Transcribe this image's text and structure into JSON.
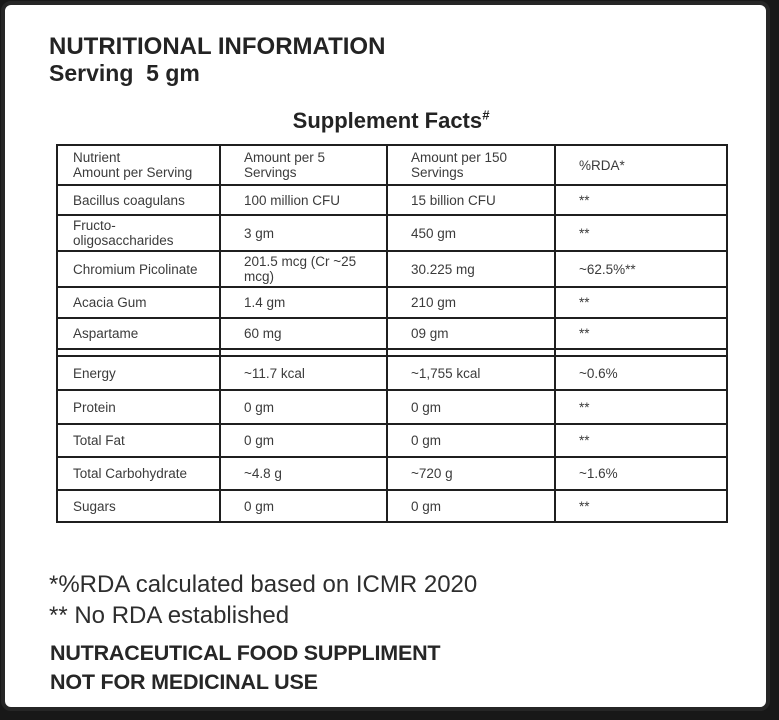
{
  "colors": {
    "ink": "#262626"
  },
  "header": {
    "title": "NUTRITIONAL INFORMATION",
    "serving": "Serving  5 gm"
  },
  "table": {
    "title": "Supplement Facts",
    "title_superscript": "#",
    "columns": [
      "Nutrient\nAmount per Serving",
      "Amount per 5\nServings",
      "Amount per 150\nServings",
      "%RDA*"
    ],
    "groups": [
      {
        "rows": [
          {
            "nutrient": "Bacillus coagulans",
            "per5": "100 million CFU",
            "per150": "15 billion CFU",
            "rda": "**"
          },
          {
            "nutrient": "Fructo-\noligosaccharides",
            "per5": "3 gm",
            "per150": "450 gm",
            "rda": "**"
          },
          {
            "nutrient": "Chromium Picolinate",
            "per5": "201.5 mcg (Cr ~25 mcg)",
            "per150": "30.225 mg",
            "rda": "~62.5%**"
          },
          {
            "nutrient": "Acacia Gum",
            "per5": "1.4 gm",
            "per150": "210 gm",
            "rda": "**"
          },
          {
            "nutrient": "Aspartame",
            "per5": "60 mg",
            "per150": "09 gm",
            "rda": "**"
          }
        ]
      },
      {
        "rows": [
          {
            "nutrient": "Energy",
            "per5": "~11.7 kcal",
            "per150": "~1,755 kcal",
            "rda": "~0.6%"
          },
          {
            "nutrient": "Protein",
            "per5": "0 gm",
            "per150": "0 gm",
            "rda": "**"
          },
          {
            "nutrient": "Total Fat",
            "per5": "0 gm",
            "per150": "0 gm",
            "rda": "**"
          },
          {
            "nutrient": "Total Carbohydrate",
            "per5": "~4.8 g",
            "per150": "~720 g",
            "rda": "~1.6%"
          },
          {
            "nutrient": "Sugars",
            "per5": "0 gm",
            "per150": "0 gm",
            "rda": "**"
          }
        ]
      }
    ]
  },
  "footnotes": {
    "rda": "*%RDA calculated based on ICMR 2020",
    "no_rda": "** No RDA established"
  },
  "footer": {
    "line1": "NUTRACEUTICAL FOOD SUPPLIMENT",
    "line2": "NOT FOR MEDICINAL USE"
  }
}
